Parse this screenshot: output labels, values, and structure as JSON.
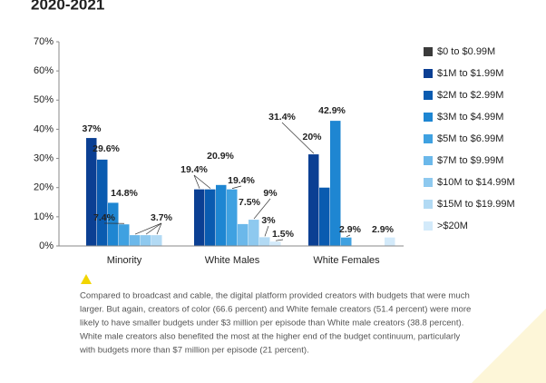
{
  "chart_data": {
    "type": "bar",
    "title": "2020-2021",
    "categories": [
      "Minority",
      "White Males",
      "White Females"
    ],
    "series": [
      {
        "name": "$0 to $0.99M",
        "color": "#3b3b3b",
        "values": [
          0,
          0,
          0
        ],
        "value_labels": [
          null,
          null,
          null
        ]
      },
      {
        "name": "$1M to $1.99M",
        "color": "#0b3f93",
        "values": [
          37,
          19.4,
          31.4
        ],
        "value_labels": [
          "37%",
          "19.4%",
          "31.4%"
        ]
      },
      {
        "name": "$2M to $2.99M",
        "color": "#0a5bb0",
        "values": [
          29.6,
          19.4,
          20
        ],
        "value_labels": [
          "29.6%",
          null,
          "20%"
        ]
      },
      {
        "name": "$3M to $4.99M",
        "color": "#1e86d2",
        "values": [
          14.8,
          20.9,
          42.9
        ],
        "value_labels": [
          "14.8%",
          "20.9%",
          "42.9%"
        ]
      },
      {
        "name": "$5M to $6.99M",
        "color": "#3fa1e1",
        "values": [
          7.4,
          19.4,
          2.9
        ],
        "value_labels": [
          "7.4%",
          "19.4%",
          "2.9%"
        ]
      },
      {
        "name": "$7M to $9.99M",
        "color": "#6bb8ea",
        "values": [
          3.7,
          7.5,
          0
        ],
        "value_labels": [
          null,
          "7.5%",
          null
        ]
      },
      {
        "name": "$10M to $14.99M",
        "color": "#8ec9ef",
        "values": [
          3.7,
          9,
          0
        ],
        "value_labels": [
          null,
          "9%",
          null
        ]
      },
      {
        "name": "$15M to $19.99M",
        "color": "#b2daf4",
        "values": [
          3.7,
          3,
          0
        ],
        "value_labels": [
          "3.7%",
          "3%",
          null
        ]
      },
      {
        "name": ">$20M",
        "color": "#d3eafa",
        "values": [
          0,
          1.5,
          2.9
        ],
        "value_labels": [
          null,
          "1.5%",
          "2.9%"
        ]
      }
    ],
    "ylim": [
      0,
      70
    ],
    "yticks": [
      {
        "value": 0,
        "label": "0%"
      },
      {
        "value": 10,
        "label": "10%"
      },
      {
        "value": 20,
        "label": "20%"
      },
      {
        "value": 30,
        "label": "30%"
      },
      {
        "value": 40,
        "label": "40%"
      },
      {
        "value": 50,
        "label": "50%"
      },
      {
        "value": 60,
        "label": "60%"
      },
      {
        "value": 70,
        "label": "70%"
      }
    ],
    "grid": false,
    "legend": "right",
    "note": [
      "Compared to broadcast and cable, the digital platform provided creators with budgets that were much",
      "larger. But again, creators of color (66.6 percent) and White female creators (51.4 percent) were more",
      "likely to have smaller budgets under $3 million per episode than White male creators (38.8 percent).",
      "White male creators also benefited the most at the higher end of the budget continuum, particularly",
      "with budgets more than $7 million per episode (21 percent)."
    ]
  }
}
